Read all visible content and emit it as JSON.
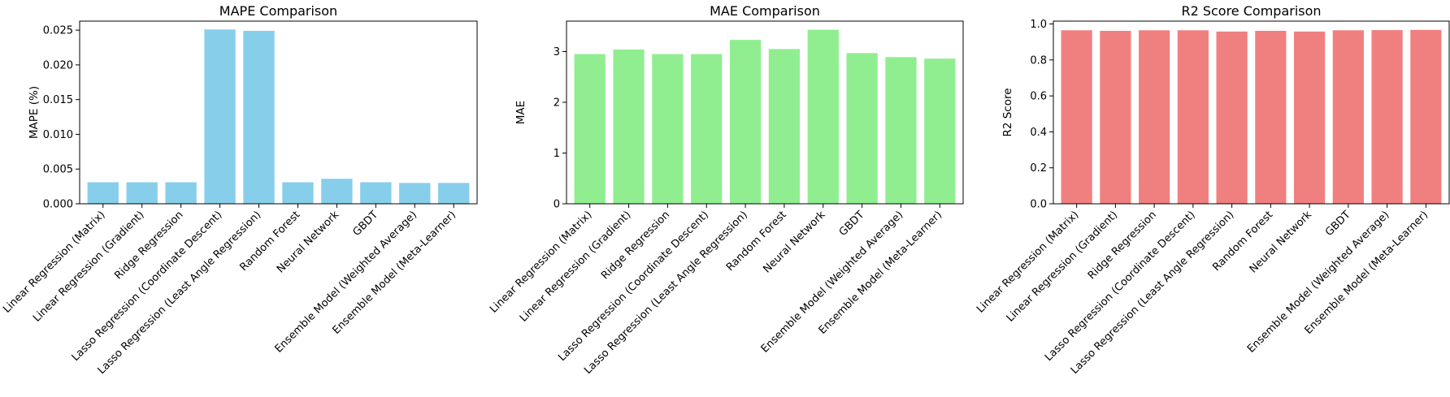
{
  "chart_data": [
    {
      "type": "bar",
      "title": "MAPE Comparison",
      "xlabel": "",
      "ylabel": "MAPE (%)",
      "color": "#87CEEB",
      "ylim": [
        0,
        0.0263
      ],
      "yticks": [
        0.0,
        0.005,
        0.01,
        0.015,
        0.02,
        0.025
      ],
      "ytick_labels": [
        "0.000",
        "0.005",
        "0.010",
        "0.015",
        "0.020",
        "0.025"
      ],
      "categories": [
        "Linear Regression (Matrix)",
        "Linear Regression (Gradient)",
        "Ridge Regression",
        "Lasso Regression (Coordinate Descent)",
        "Lasso Regression (Least Angle Regression)",
        "Random Forest",
        "Neural Network",
        "GBDT",
        "Ensemble Model (Weighted Average)",
        "Ensemble Model (Meta-Learner)"
      ],
      "values": [
        0.0031,
        0.0031,
        0.0031,
        0.0251,
        0.0249,
        0.0031,
        0.0036,
        0.0031,
        0.003,
        0.003
      ]
    },
    {
      "type": "bar",
      "title": "MAE Comparison",
      "xlabel": "",
      "ylabel": "MAE",
      "color": "#90EE90",
      "ylim": [
        0,
        3.6
      ],
      "yticks": [
        0,
        1,
        2,
        3
      ],
      "ytick_labels": [
        "0",
        "1",
        "2",
        "3"
      ],
      "categories": [
        "Linear Regression (Matrix)",
        "Linear Regression (Gradient)",
        "Ridge Regression",
        "Lasso Regression (Coordinate Descent)",
        "Lasso Regression (Least Angle Regression)",
        "Random Forest",
        "Neural Network",
        "GBDT",
        "Ensemble Model (Weighted Average)",
        "Ensemble Model (Meta-Learner)"
      ],
      "values": [
        2.95,
        3.04,
        2.95,
        2.95,
        3.23,
        3.05,
        3.43,
        2.97,
        2.89,
        2.86
      ]
    },
    {
      "type": "bar",
      "title": "R2 Score Comparison",
      "xlabel": "",
      "ylabel": "R2 Score",
      "color": "#F08080",
      "ylim": [
        0,
        1.016
      ],
      "yticks": [
        0.0,
        0.2,
        0.4,
        0.6,
        0.8,
        1.0
      ],
      "ytick_labels": [
        "0.0",
        "0.2",
        "0.4",
        "0.6",
        "0.8",
        "1.0"
      ],
      "categories": [
        "Linear Regression (Matrix)",
        "Linear Regression (Gradient)",
        "Ridge Regression",
        "Lasso Regression (Coordinate Descent)",
        "Lasso Regression (Least Angle Regression)",
        "Random Forest",
        "Neural Network",
        "GBDT",
        "Ensemble Model (Weighted Average)",
        "Ensemble Model (Meta-Learner)"
      ],
      "values": [
        0.965,
        0.962,
        0.965,
        0.965,
        0.958,
        0.962,
        0.958,
        0.965,
        0.966,
        0.967
      ]
    }
  ]
}
